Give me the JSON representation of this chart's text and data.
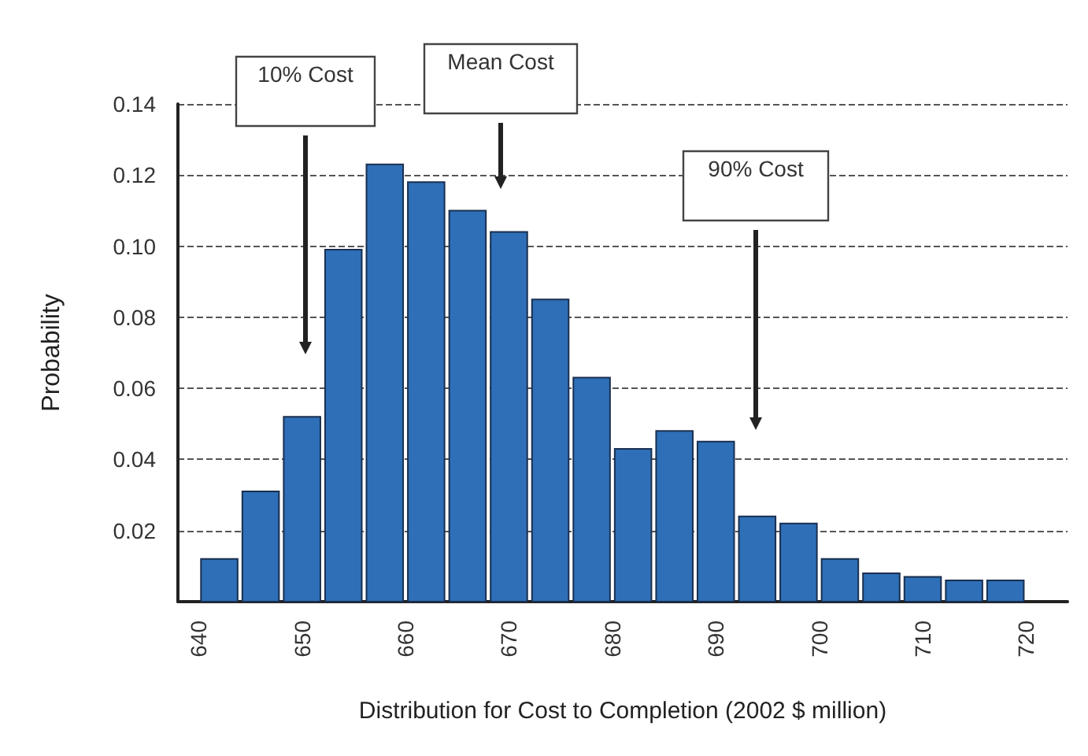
{
  "chart_data": {
    "type": "histogram",
    "xlabel": "Distribution for Cost to Completion (2002 $ million)",
    "ylabel": "Probability",
    "bins": [
      640,
      644,
      648,
      652,
      656,
      660,
      664,
      668,
      672,
      676,
      680,
      684,
      688,
      692,
      696,
      700,
      704,
      708,
      712,
      716,
      720
    ],
    "values": [
      0.012,
      0.031,
      0.052,
      0.099,
      0.123,
      0.118,
      0.11,
      0.104,
      0.085,
      0.063,
      0.043,
      0.048,
      0.045,
      0.024,
      0.022,
      0.012,
      0.008,
      0.007,
      0.006,
      0.006
    ],
    "color": "#2e6fb7",
    "xlim": [
      638,
      724
    ],
    "xticks": [
      640,
      650,
      660,
      670,
      680,
      690,
      700,
      710,
      720
    ],
    "ylim": [
      0,
      0.14
    ],
    "yticks": [
      {
        "value": 0,
        "label": null
      },
      0.02,
      0.04,
      0.06,
      0.08,
      {
        "value": 0.1,
        "label": "0.10"
      },
      0.12,
      0.14
    ],
    "grid": "y",
    "annotations": [
      "10% Cost",
      "Mean Cost",
      "90% Cost"
    ]
  }
}
